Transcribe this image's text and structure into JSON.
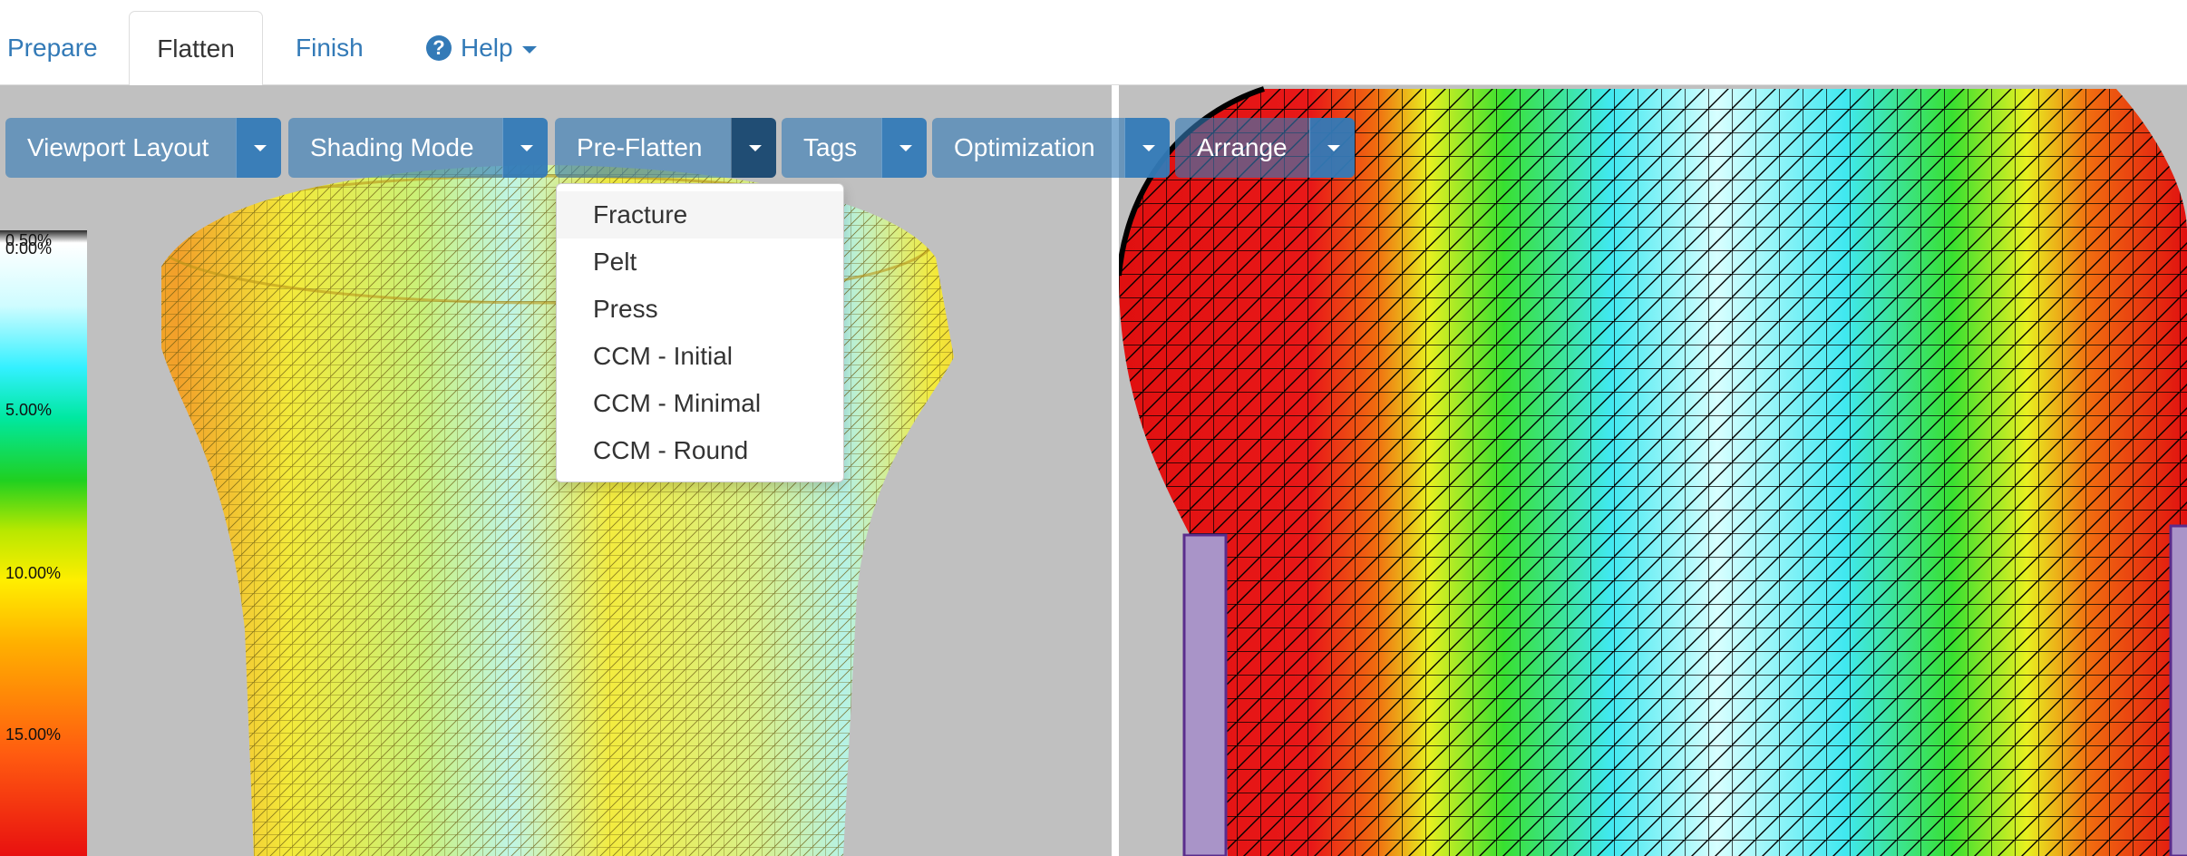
{
  "nav": {
    "tabs": [
      {
        "label": "Prepare",
        "active": false
      },
      {
        "label": "Flatten",
        "active": true
      },
      {
        "label": "Finish",
        "active": false
      },
      {
        "label": "Help",
        "active": false
      }
    ],
    "help_icon": "question-circle-icon"
  },
  "toolbar": {
    "buttons": [
      {
        "label": "Viewport Layout"
      },
      {
        "label": "Shading Mode"
      },
      {
        "label": "Pre-Flatten",
        "open": true
      },
      {
        "label": "Tags"
      },
      {
        "label": "Optimization"
      },
      {
        "label": "Arrange"
      }
    ]
  },
  "dropdown": {
    "items": [
      "Fracture",
      "Pelt",
      "Press",
      "CCM - Initial",
      "CCM - Minimal",
      "CCM - Round"
    ],
    "highlighted": "Fracture"
  },
  "legend": {
    "labels": [
      "0.00%",
      "0.50%",
      "5.00%",
      "10.00%",
      "15.00%"
    ]
  },
  "colors": {
    "link": "#337ab7",
    "button": "#337ab7",
    "button_active": "#204d74",
    "viewport_bg": "#c0c0c0",
    "mesh_left_base": "#f2e23a",
    "mesh_right_base": "#e81818",
    "patch_purple": "#a994c8"
  }
}
